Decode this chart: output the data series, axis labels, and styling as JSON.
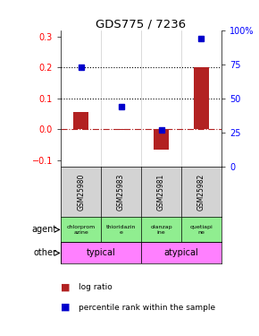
{
  "title": "GDS775 / 7236",
  "samples": [
    "GSM25980",
    "GSM25983",
    "GSM25981",
    "GSM25982"
  ],
  "log_ratios": [
    0.055,
    -0.002,
    -0.065,
    0.2
  ],
  "percentile_ranks": [
    0.73,
    0.44,
    0.27,
    0.94
  ],
  "agents": [
    "chlorprom\nazine",
    "thioridazin\ne",
    "olanzap\nine",
    "quetiapi\nne"
  ],
  "bar_color": "#B22222",
  "dot_color": "#0000CC",
  "ylim_left": [
    -0.12,
    0.32
  ],
  "ylim_right": [
    0,
    100
  ],
  "yticks_left": [
    -0.1,
    0.0,
    0.1,
    0.2,
    0.3
  ],
  "yticks_right": [
    0,
    25,
    50,
    75,
    100
  ],
  "hlines_dotted": [
    0.1,
    0.2
  ],
  "zero_line_color": "#B22222",
  "gsm_bg": "#d3d3d3",
  "agent_bg": "#90EE90",
  "typical_bg": "#FF80FF",
  "atypical_bg": "#FF80FF",
  "plot_bg": "#ffffff",
  "background_color": "#ffffff"
}
